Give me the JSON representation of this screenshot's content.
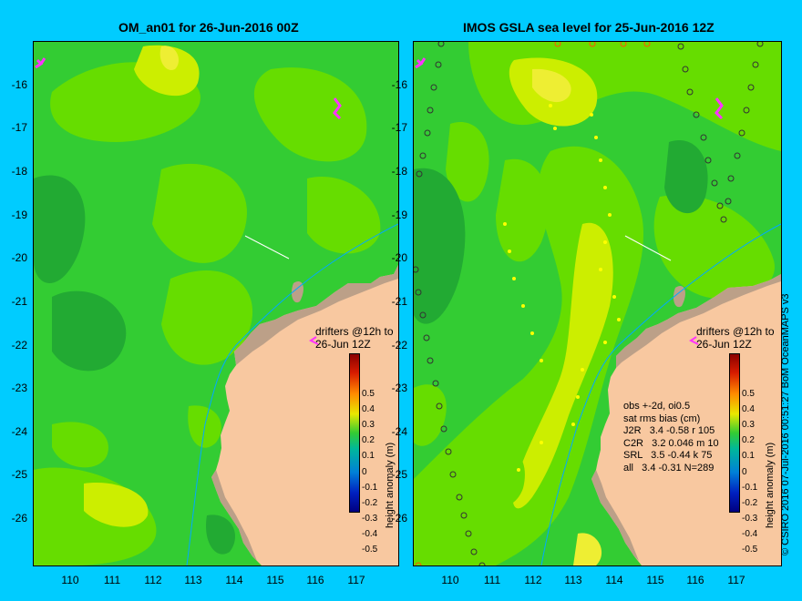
{
  "panels": [
    {
      "title": "OM_an01 for 26-Jun-2016 00Z"
    },
    {
      "title": "IMOS GSLA sea level  for 25-Jun-2016 12Z"
    }
  ],
  "y_ticks": [
    "-16",
    "-17",
    "-18",
    "-19",
    "-20",
    "-21",
    "-22",
    "-23",
    "-24",
    "-25",
    "-26"
  ],
  "x_ticks": [
    "110",
    "111",
    "112",
    "113",
    "114",
    "115",
    "116",
    "117"
  ],
  "drifters_note": {
    "line1": "drifters @12h to",
    "line2": "26-Jun 12Z"
  },
  "obs_stats": {
    "line1": "obs +-2d, oi0.5",
    "line2": "sat rms bias (cm)",
    "line3": "J2R   3.4 -0.58 r 105",
    "line4": "C2R   3.2 0.046 m 10",
    "line5": "SRL   3.5 -0.44 k 75",
    "line6": "all   3.4 -0.31 N=289"
  },
  "colorbar": {
    "label": "height anomaly (m)",
    "ticks": [
      "0.5",
      "0.4",
      "0.3",
      "0.2",
      "0.1",
      "0",
      "-0.1",
      "-0.2",
      "-0.3",
      "-0.4",
      "-0.5"
    ]
  },
  "credit": "© CSIRO 2016  07-Jul-2016 00:51:27 BoM OceanMAPS v3",
  "colors": {
    "background": "#00ccff",
    "ocean_zero": "#33cc33",
    "ocean_low": "#22aa33",
    "ocean_pos": "#66dd00",
    "ocean_high": "#ccee00",
    "ocean_peak": "#eeee33",
    "land": "#f8c8a0",
    "coast_shelf": "#bca088",
    "isobath": "#00aaff",
    "drifter": "#ff33ff"
  }
}
